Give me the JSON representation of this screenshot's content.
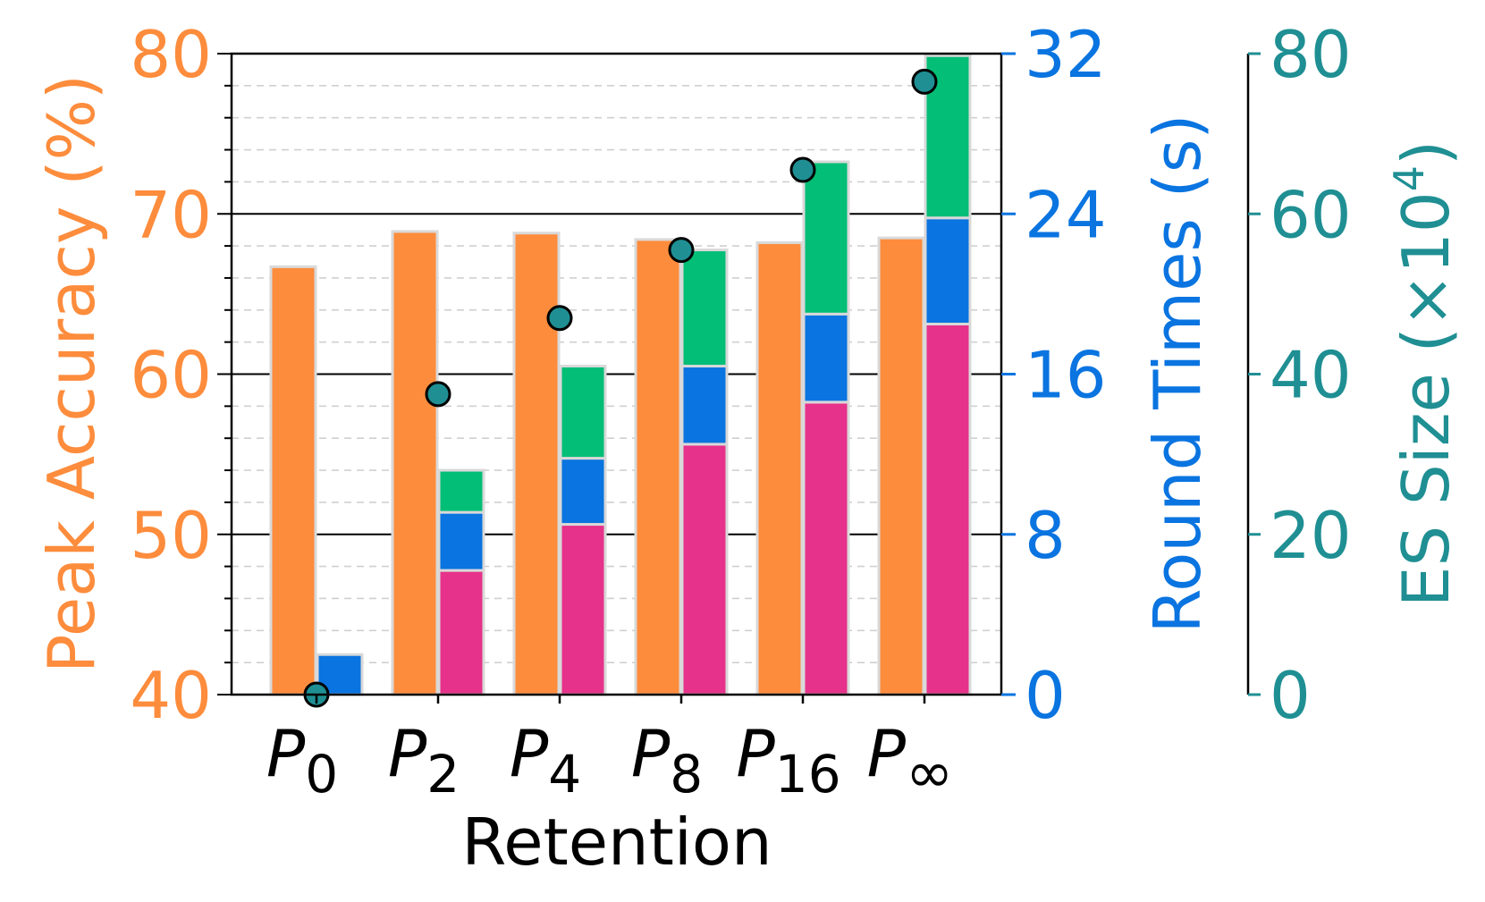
{
  "chart_data": {
    "type": "bar",
    "xlabel": "Retention",
    "categories": [
      {
        "base": "P",
        "sub": "0"
      },
      {
        "base": "P",
        "sub": "2"
      },
      {
        "base": "P",
        "sub": "4"
      },
      {
        "base": "P",
        "sub": "8"
      },
      {
        "base": "P",
        "sub": "16"
      },
      {
        "base": "P",
        "sub": "∞"
      }
    ],
    "axes": {
      "left": {
        "label": "Peak Accuracy (%)",
        "ylim": [
          40,
          80
        ],
        "ticks": [
          40,
          50,
          60,
          70,
          80
        ],
        "color": "#fd8c3c"
      },
      "right1": {
        "label": "Round Times (s)",
        "ylim": [
          0,
          32
        ],
        "ticks": [
          0,
          8,
          16,
          24,
          32
        ],
        "color": "#0a74e0"
      },
      "right2": {
        "label_main": "ES Size (×10",
        "label_sup": "4",
        "label_end": ")",
        "ylim": [
          0,
          80
        ],
        "ticks": [
          0,
          20,
          40,
          60,
          80
        ],
        "color": "#1f8f93"
      }
    },
    "series": [
      {
        "axis": "left",
        "kind": "bar",
        "color": "#fd8c3c",
        "values": [
          66.7,
          68.9,
          68.8,
          68.4,
          68.2,
          68.5
        ]
      },
      {
        "axis": "right1",
        "kind": "stacked_bar",
        "segments": [
          {
            "color": "#e6328a",
            "values": [
              0,
              6.2,
              8.5,
              12.5,
              14.6,
              18.5
            ]
          },
          {
            "color": "#0a74e0",
            "values": [
              2.0,
              2.9,
              3.3,
              3.9,
              4.4,
              5.3
            ]
          },
          {
            "color": "#03be76",
            "values": [
              0,
              2.1,
              4.6,
              5.8,
              7.6,
              8.1
            ]
          }
        ]
      },
      {
        "axis": "right2",
        "kind": "scatter",
        "color": "#1f8f93",
        "values": [
          0,
          37.5,
          47,
          55.5,
          65.5,
          76.5
        ]
      }
    ],
    "grid": true
  }
}
